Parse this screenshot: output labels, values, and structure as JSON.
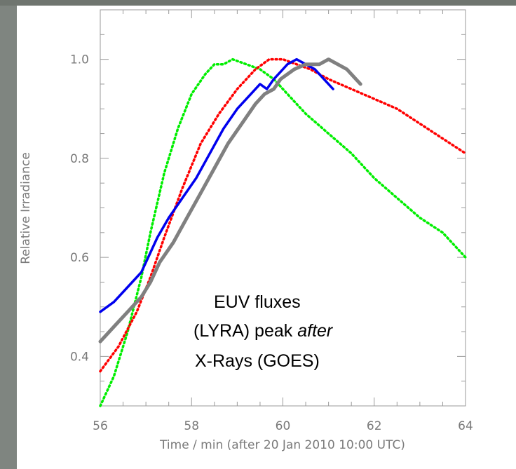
{
  "chart_data": {
    "type": "line",
    "xlabel": "Time / min (after 20 Jan 2010 10:00 UTC)",
    "ylabel": "Relative Irradiance",
    "xlim": [
      56,
      64
    ],
    "ylim": [
      0.3,
      1.1
    ],
    "x_ticks": [
      "56",
      "58",
      "60",
      "62",
      "64"
    ],
    "y_ticks": [
      "0.4",
      "0.6",
      "0.8",
      "1.0"
    ],
    "grid": false,
    "annotation": {
      "lines": [
        "EUV fluxes",
        "(LYRA) peak ",
        "X-Rays (GOES)"
      ],
      "italic_word": "after"
    },
    "series": [
      {
        "color": "#00ee00",
        "style": "solid-then-dotted",
        "points": [
          [
            56,
            0.3
          ],
          [
            56.3,
            0.36
          ],
          [
            56.6,
            0.45
          ],
          [
            56.9,
            0.56
          ],
          [
            57.1,
            0.65
          ],
          [
            57.4,
            0.77
          ],
          [
            57.7,
            0.86
          ],
          [
            58.0,
            0.93
          ],
          [
            58.3,
            0.97
          ],
          [
            58.5,
            0.99
          ],
          [
            58.7,
            0.99
          ],
          [
            58.9,
            1.0
          ],
          [
            59.2,
            0.99
          ],
          [
            59.5,
            0.98
          ],
          [
            59.8,
            0.96
          ],
          [
            60.1,
            0.93
          ],
          [
            60.5,
            0.89
          ],
          [
            61.0,
            0.85
          ],
          [
            61.5,
            0.81
          ],
          [
            62.0,
            0.76
          ],
          [
            62.5,
            0.72
          ],
          [
            63.0,
            0.68
          ],
          [
            63.5,
            0.65
          ],
          [
            64.0,
            0.6
          ]
        ]
      },
      {
        "color": "#ff0000",
        "style": "dotted-then-solid",
        "points": [
          [
            56,
            0.37
          ],
          [
            56.4,
            0.42
          ],
          [
            56.8,
            0.49
          ],
          [
            57.1,
            0.56
          ],
          [
            57.4,
            0.64
          ],
          [
            57.8,
            0.74
          ],
          [
            58.2,
            0.83
          ],
          [
            58.6,
            0.89
          ],
          [
            59.0,
            0.94
          ],
          [
            59.4,
            0.98
          ],
          [
            59.7,
            1.0
          ],
          [
            60.0,
            1.0
          ],
          [
            60.3,
            0.99
          ],
          [
            60.6,
            0.98
          ],
          [
            61.0,
            0.96
          ],
          [
            61.5,
            0.94
          ],
          [
            62.0,
            0.92
          ],
          [
            62.5,
            0.9
          ],
          [
            63.0,
            0.87
          ],
          [
            63.5,
            0.84
          ],
          [
            64.0,
            0.81
          ]
        ]
      },
      {
        "color": "#0000ee",
        "style": "solid",
        "points": [
          [
            56,
            0.49
          ],
          [
            56.3,
            0.51
          ],
          [
            56.6,
            0.54
          ],
          [
            56.9,
            0.57
          ],
          [
            57.05,
            0.6
          ],
          [
            57.25,
            0.64
          ],
          [
            57.5,
            0.68
          ],
          [
            57.8,
            0.72
          ],
          [
            58.1,
            0.76
          ],
          [
            58.4,
            0.81
          ],
          [
            58.7,
            0.86
          ],
          [
            59.0,
            0.9
          ],
          [
            59.3,
            0.93
          ],
          [
            59.5,
            0.95
          ],
          [
            59.65,
            0.94
          ],
          [
            59.8,
            0.96
          ],
          [
            60.0,
            0.98
          ],
          [
            60.1,
            0.99
          ],
          [
            60.3,
            1.0
          ],
          [
            60.5,
            0.99
          ],
          [
            60.7,
            0.98
          ],
          [
            60.9,
            0.96
          ],
          [
            61.1,
            0.94
          ]
        ]
      },
      {
        "color": "#808080",
        "style": "solid-thick",
        "points": [
          [
            56,
            0.43
          ],
          [
            56.3,
            0.46
          ],
          [
            56.6,
            0.49
          ],
          [
            56.9,
            0.52
          ],
          [
            57.1,
            0.55
          ],
          [
            57.3,
            0.59
          ],
          [
            57.6,
            0.63
          ],
          [
            57.9,
            0.68
          ],
          [
            58.2,
            0.73
          ],
          [
            58.5,
            0.78
          ],
          [
            58.8,
            0.83
          ],
          [
            59.1,
            0.87
          ],
          [
            59.4,
            0.91
          ],
          [
            59.6,
            0.93
          ],
          [
            59.8,
            0.94
          ],
          [
            59.95,
            0.96
          ],
          [
            60.1,
            0.97
          ],
          [
            60.25,
            0.98
          ],
          [
            60.5,
            0.99
          ],
          [
            60.8,
            0.99
          ],
          [
            61.0,
            1.0
          ],
          [
            61.2,
            0.99
          ],
          [
            61.4,
            0.98
          ],
          [
            61.6,
            0.96
          ],
          [
            61.7,
            0.95
          ]
        ]
      }
    ]
  }
}
